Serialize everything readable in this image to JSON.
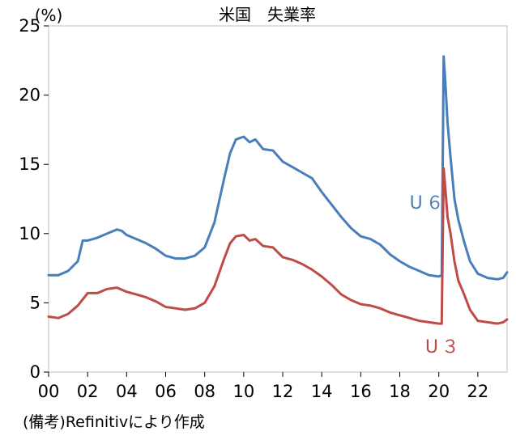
{
  "chart_data": {
    "type": "line",
    "title": "米国　失業率",
    "y_unit": "(%)",
    "ylim": [
      0,
      25
    ],
    "y_ticks": [
      0,
      5,
      10,
      15,
      20,
      25
    ],
    "x_tick_labels": [
      "00",
      "02",
      "04",
      "06",
      "08",
      "10",
      "12",
      "14",
      "16",
      "18",
      "20",
      "22"
    ],
    "x_tick_years": [
      2000,
      2002,
      2004,
      2006,
      2008,
      2010,
      2012,
      2014,
      2016,
      2018,
      2020,
      2022
    ],
    "xlim": [
      2000,
      2023.5
    ],
    "grid": false,
    "source_note": "(備考)Refinitivにより作成",
    "series": [
      {
        "name": "U６",
        "color": "#4a7ebb",
        "x": [
          2000.0,
          2000.5,
          2001.0,
          2001.5,
          2001.75,
          2002.0,
          2002.5,
          2003.0,
          2003.5,
          2003.75,
          2004.0,
          2004.5,
          2005.0,
          2005.5,
          2006.0,
          2006.5,
          2007.0,
          2007.5,
          2008.0,
          2008.5,
          2009.0,
          2009.3,
          2009.6,
          2010.0,
          2010.3,
          2010.6,
          2011.0,
          2011.5,
          2012.0,
          2012.5,
          2013.0,
          2013.5,
          2014.0,
          2014.5,
          2015.0,
          2015.5,
          2016.0,
          2016.5,
          2017.0,
          2017.5,
          2018.0,
          2018.5,
          2019.0,
          2019.5,
          2020.0,
          2020.15,
          2020.25,
          2020.33,
          2020.45,
          2020.6,
          2020.8,
          2021.0,
          2021.3,
          2021.6,
          2022.0,
          2022.5,
          2023.0,
          2023.3,
          2023.5
        ],
        "values": [
          7.0,
          7.0,
          7.3,
          8.0,
          9.5,
          9.5,
          9.7,
          10.0,
          10.3,
          10.2,
          9.9,
          9.6,
          9.3,
          8.9,
          8.4,
          8.2,
          8.2,
          8.4,
          9.0,
          10.8,
          14.0,
          15.8,
          16.8,
          17.0,
          16.6,
          16.8,
          16.1,
          16.0,
          15.2,
          14.8,
          14.4,
          14.0,
          13.0,
          12.1,
          11.2,
          10.4,
          9.8,
          9.6,
          9.2,
          8.5,
          8.0,
          7.6,
          7.3,
          7.0,
          6.9,
          7.0,
          22.8,
          21.0,
          18.0,
          15.5,
          12.5,
          11.0,
          9.4,
          8.0,
          7.1,
          6.8,
          6.7,
          6.8,
          7.2
        ]
      },
      {
        "name": "U３",
        "color": "#be4b48",
        "x": [
          2000.0,
          2000.5,
          2001.0,
          2001.5,
          2002.0,
          2002.5,
          2003.0,
          2003.5,
          2004.0,
          2004.5,
          2005.0,
          2005.5,
          2006.0,
          2006.5,
          2007.0,
          2007.5,
          2008.0,
          2008.5,
          2009.0,
          2009.3,
          2009.6,
          2010.0,
          2010.3,
          2010.6,
          2011.0,
          2011.5,
          2012.0,
          2012.5,
          2013.0,
          2013.5,
          2014.0,
          2014.5,
          2015.0,
          2015.5,
          2016.0,
          2016.5,
          2017.0,
          2017.5,
          2018.0,
          2018.5,
          2019.0,
          2019.5,
          2020.0,
          2020.15,
          2020.25,
          2020.33,
          2020.45,
          2020.6,
          2020.8,
          2021.0,
          2021.3,
          2021.6,
          2022.0,
          2022.5,
          2023.0,
          2023.3,
          2023.5
        ],
        "values": [
          4.0,
          3.9,
          4.2,
          4.8,
          5.7,
          5.7,
          6.0,
          6.1,
          5.8,
          5.6,
          5.4,
          5.1,
          4.7,
          4.6,
          4.5,
          4.6,
          5.0,
          6.2,
          8.2,
          9.3,
          9.8,
          9.9,
          9.5,
          9.6,
          9.1,
          9.0,
          8.3,
          8.1,
          7.8,
          7.4,
          6.9,
          6.3,
          5.6,
          5.2,
          4.9,
          4.8,
          4.6,
          4.3,
          4.1,
          3.9,
          3.7,
          3.6,
          3.5,
          3.5,
          14.7,
          13.3,
          11.2,
          10.0,
          8.0,
          6.6,
          5.6,
          4.5,
          3.7,
          3.6,
          3.5,
          3.6,
          3.8
        ]
      }
    ]
  }
}
